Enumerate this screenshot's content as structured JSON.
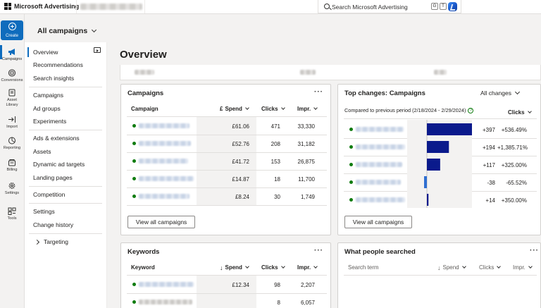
{
  "app": {
    "brand": "Microsoft Advertising",
    "search_placeholder": "Search Microsoft Advertising",
    "shortcut_keys": [
      "G",
      "T"
    ]
  },
  "header": {
    "scope_label": "All campaigns"
  },
  "rail": {
    "create_label": "Create",
    "items": [
      {
        "label": "Campaigns",
        "icon": "megaphone-icon"
      },
      {
        "label": "Conversions",
        "icon": "target-icon"
      },
      {
        "label": "Asset Library",
        "icon": "asset-library-icon"
      },
      {
        "label": "Import",
        "icon": "import-icon"
      },
      {
        "label": "Reporting",
        "icon": "reporting-icon"
      },
      {
        "label": "Billing",
        "icon": "billing-icon"
      },
      {
        "label": "Settings",
        "icon": "gear-icon"
      },
      {
        "label": "Tools",
        "icon": "tools-icon"
      }
    ]
  },
  "nav": {
    "items": [
      "Overview",
      "Recommendations",
      "Search insights",
      "Campaigns",
      "Ad groups",
      "Experiments",
      "Ads & extensions",
      "Assets",
      "Dynamic ad targets",
      "Landing pages",
      "Competition",
      "Settings",
      "Change history",
      "Targeting"
    ]
  },
  "page": {
    "title": "Overview"
  },
  "campaigns_card": {
    "title": "Campaigns",
    "columns": [
      "Campaign",
      "Spend",
      "Clicks",
      "Impr."
    ],
    "currency_symbol": "£",
    "rows": [
      {
        "spend": "£61.06",
        "clicks": "471",
        "impr": "33,330"
      },
      {
        "spend": "£52.76",
        "clicks": "208",
        "impr": "31,182"
      },
      {
        "spend": "£41.72",
        "clicks": "153",
        "impr": "26,875"
      },
      {
        "spend": "£14.87",
        "clicks": "18",
        "impr": "11,700"
      },
      {
        "spend": "£8.24",
        "clicks": "30",
        "impr": "1,749"
      }
    ],
    "button": "View all campaigns"
  },
  "top_changes_card": {
    "title": "Top changes: Campaigns",
    "dropdown": "All changes",
    "subtitle": "Compared to previous period (2/18/2024 - 2/29/2024)",
    "metric": "Clicks",
    "rows": [
      {
        "change": "+397",
        "pct": "+536.49%"
      },
      {
        "change": "+194",
        "pct": "+1,385.71%"
      },
      {
        "change": "+117",
        "pct": "+325.00%"
      },
      {
        "change": "-38",
        "pct": "-65.52%"
      },
      {
        "change": "+14",
        "pct": "+350.00%"
      }
    ],
    "button": "View all campaigns"
  },
  "keywords_card": {
    "title": "Keywords",
    "columns": [
      "Keyword",
      "Spend",
      "Clicks",
      "Impr."
    ],
    "rows": [
      {
        "spend": "£12.34",
        "clicks": "98",
        "impr": "2,207"
      },
      {
        "spend": "",
        "clicks": "8",
        "impr": "6,057"
      }
    ]
  },
  "searched_card": {
    "title": "What people searched",
    "columns": [
      "Search term",
      "Spend",
      "Clicks",
      "Impr."
    ]
  },
  "colors": {
    "accent": "#0f6cbd",
    "status_green": "#107c10",
    "bar": "#0a1a8c"
  }
}
